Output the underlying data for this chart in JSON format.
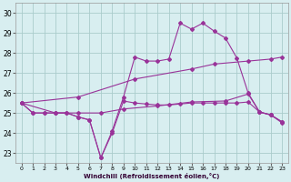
{
  "title": "",
  "xlabel": "Windchill (Refroidissement éolien,°C)",
  "ylabel": "",
  "bg_color": "#d8eef0",
  "grid_color": "#aacccc",
  "line_color": "#993399",
  "xlim": [
    -0.5,
    23.5
  ],
  "ylim": [
    22.5,
    30.5
  ],
  "yticks": [
    23,
    24,
    25,
    26,
    27,
    28,
    29,
    30
  ],
  "xticks": [
    0,
    1,
    2,
    3,
    4,
    5,
    6,
    7,
    8,
    9,
    10,
    11,
    12,
    13,
    14,
    15,
    16,
    17,
    18,
    19,
    20,
    21,
    22,
    23
  ],
  "series": [
    {
      "x": [
        0,
        1,
        2,
        3,
        4,
        5,
        6,
        7,
        8,
        9,
        10,
        11,
        12,
        13,
        14,
        15,
        16,
        17,
        18,
        19,
        20,
        21,
        22,
        23
      ],
      "y": [
        25.5,
        25.0,
        25.0,
        25.0,
        25.0,
        24.8,
        24.65,
        22.75,
        24.0,
        25.6,
        25.5,
        25.45,
        25.4,
        25.4,
        25.45,
        25.5,
        25.5,
        25.5,
        25.5,
        25.5,
        25.55,
        25.05,
        24.9,
        24.55
      ]
    },
    {
      "x": [
        0,
        1,
        2,
        3,
        4,
        5,
        6,
        7,
        8,
        9,
        10,
        11,
        12,
        13,
        14,
        15,
        16,
        17,
        18,
        19,
        20,
        21,
        22,
        23
      ],
      "y": [
        25.5,
        25.0,
        25.0,
        25.0,
        25.0,
        24.8,
        24.65,
        22.75,
        24.1,
        25.8,
        27.8,
        27.6,
        27.6,
        27.7,
        29.5,
        29.2,
        29.5,
        29.1,
        28.75,
        27.75,
        26.0,
        25.05,
        24.9,
        24.55
      ]
    },
    {
      "x": [
        0,
        5,
        10,
        15,
        17,
        20,
        22,
        23
      ],
      "y": [
        25.5,
        25.8,
        26.7,
        27.2,
        27.45,
        27.6,
        27.7,
        27.8
      ]
    },
    {
      "x": [
        0,
        3,
        5,
        7,
        9,
        12,
        15,
        18,
        20,
        21,
        22,
        23
      ],
      "y": [
        25.5,
        25.0,
        25.0,
        25.0,
        25.2,
        25.35,
        25.55,
        25.6,
        25.95,
        25.05,
        24.9,
        24.5
      ]
    }
  ]
}
